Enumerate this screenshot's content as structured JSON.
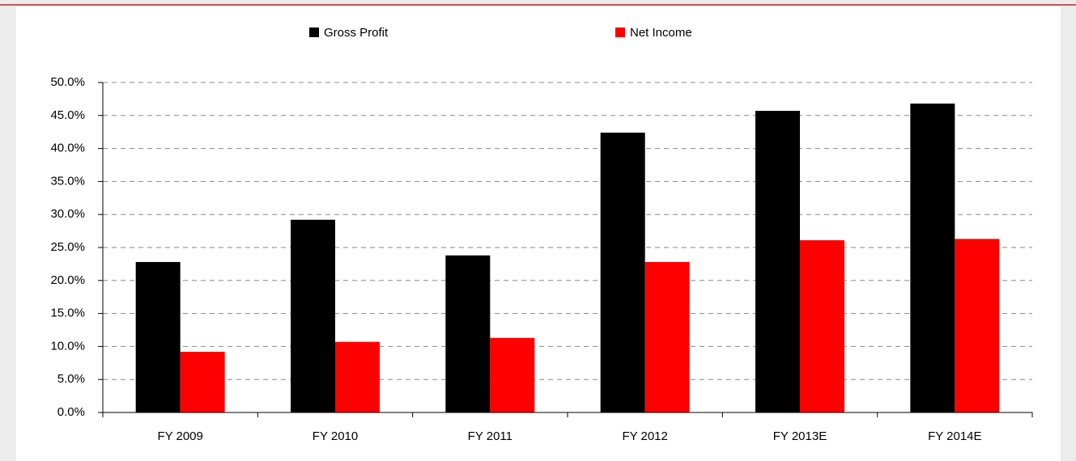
{
  "chart_data": {
    "type": "bar",
    "categories": [
      "FY 2009",
      "FY 2010",
      "FY 2011",
      "FY 2012",
      "FY 2013E",
      "FY 2014E"
    ],
    "series": [
      {
        "name": "Gross Profit",
        "color": "#000000",
        "values": [
          22.8,
          29.2,
          23.8,
          42.4,
          45.7,
          46.8
        ]
      },
      {
        "name": "Net Income",
        "color": "#ff0000",
        "values": [
          9.2,
          10.7,
          11.3,
          22.8,
          26.1,
          26.3
        ]
      }
    ],
    "ylim": [
      0,
      50
    ],
    "yticks": [
      {
        "value": 0,
        "label": "0.0%"
      },
      {
        "value": 5,
        "label": "5.0%"
      },
      {
        "value": 10,
        "label": "10.0%"
      },
      {
        "value": 15,
        "label": "15.0%"
      },
      {
        "value": 20,
        "label": "20.0%"
      },
      {
        "value": 25,
        "label": "25.0%"
      },
      {
        "value": 30,
        "label": "30.0%"
      },
      {
        "value": 35,
        "label": "35.0%"
      },
      {
        "value": 40,
        "label": "40.0%"
      },
      {
        "value": 45,
        "label": "45.0%"
      },
      {
        "value": 50,
        "label": "50.0%"
      }
    ],
    "grid": true,
    "legend": "top"
  }
}
